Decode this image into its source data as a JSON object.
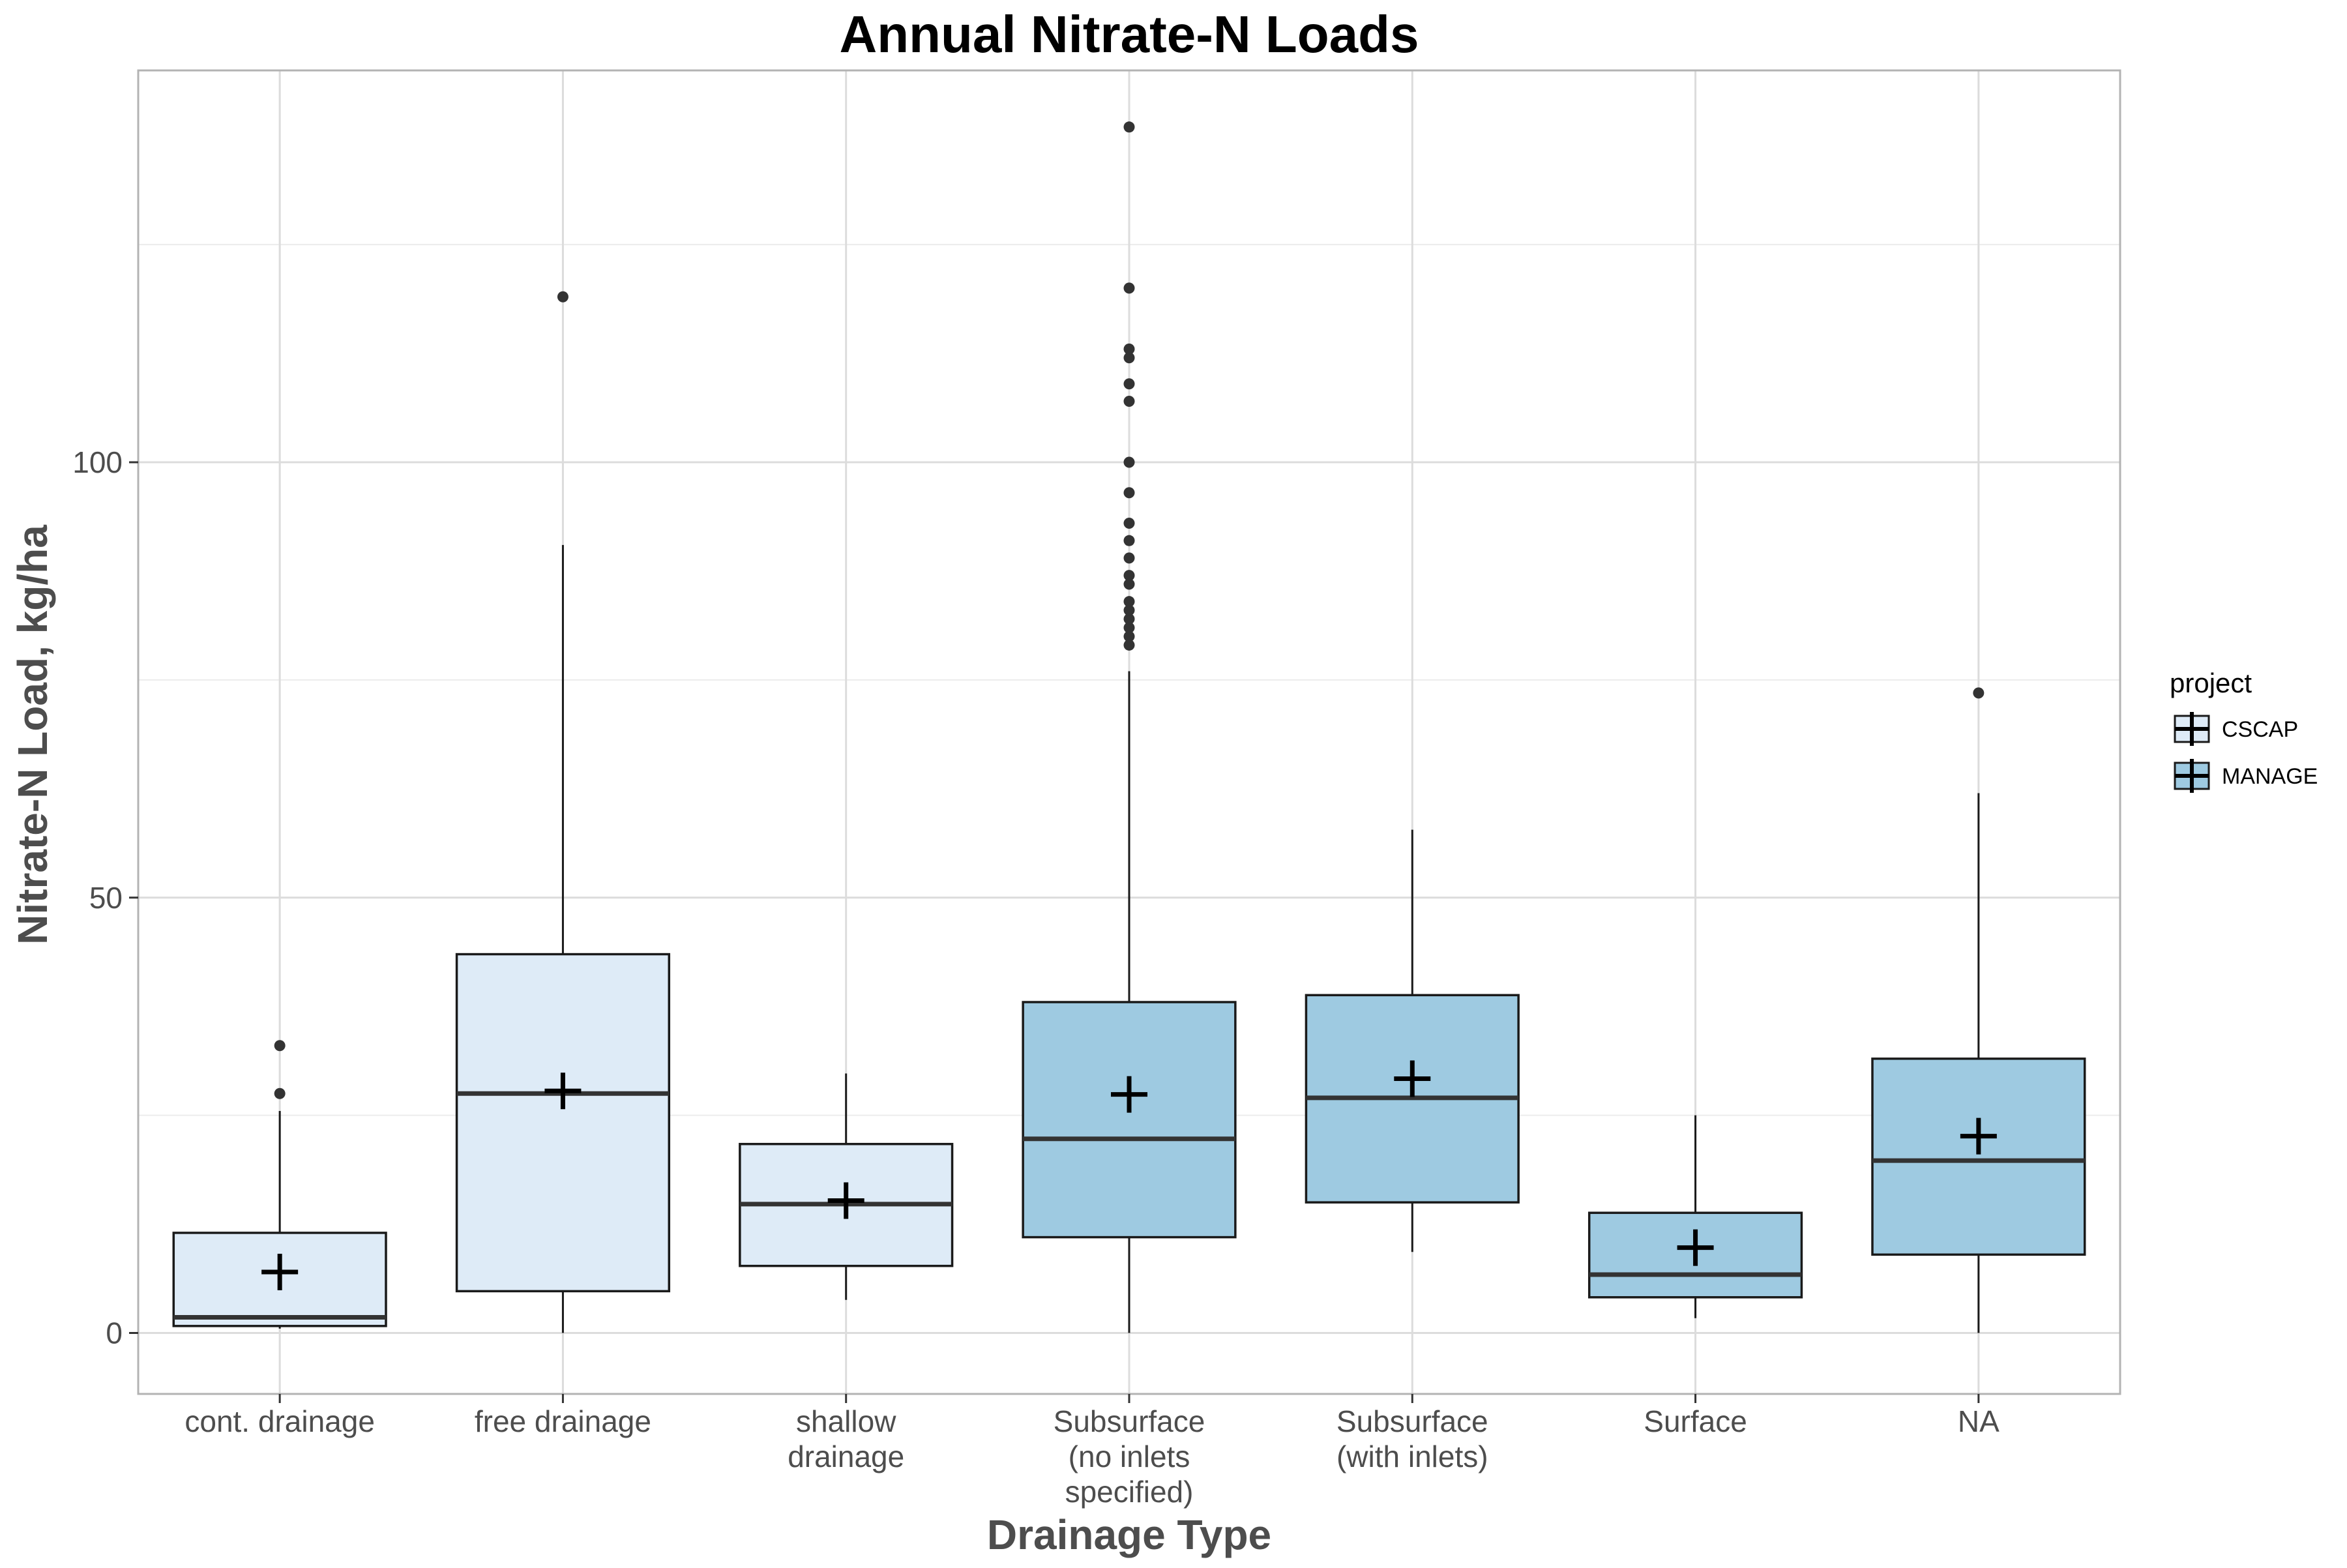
{
  "chart_data": {
    "type": "boxplot",
    "title": "Annual Nitrate-N Loads",
    "xlabel": "Drainage Type",
    "ylabel": "Nitrate-N Load, kg/ha",
    "ylim": [
      -7,
      145
    ],
    "yticks": [
      0,
      50,
      100
    ],
    "grid": true,
    "legend": {
      "title": "project",
      "position": "right",
      "entries": [
        {
          "name": "CSCAP",
          "color": "#deebf7"
        },
        {
          "name": "MANAGE",
          "color": "#9ecae1"
        }
      ]
    },
    "categories": [
      {
        "label": [
          "cont. drainage"
        ],
        "project": "CSCAP",
        "min": 0.5,
        "q1": 0.8,
        "median": 1.8,
        "q3": 11.5,
        "max": 25.5,
        "mean": 7.0,
        "outliers": [
          27.5,
          33
        ]
      },
      {
        "label": [
          "free drainage"
        ],
        "project": "CSCAP",
        "min": 0,
        "q1": 4.8,
        "median": 27.5,
        "q3": 43.5,
        "max": 90.5,
        "mean": 27.8,
        "outliers": [
          119
        ]
      },
      {
        "label": [
          "shallow",
          "drainage"
        ],
        "project": "CSCAP",
        "min": 3.8,
        "q1": 7.7,
        "median": 14.8,
        "q3": 21.7,
        "max": 29.8,
        "mean": 15.2,
        "outliers": []
      },
      {
        "label": [
          "Subsurface",
          "(no inlets",
          "specified)"
        ],
        "project": "MANAGE",
        "min": 0,
        "q1": 11.0,
        "median": 22.3,
        "q3": 38.0,
        "max": 76,
        "mean": 27.4,
        "outliers": [
          79,
          80,
          81,
          82,
          83,
          84,
          86,
          87,
          89,
          91,
          93,
          96.5,
          100,
          107,
          109,
          112,
          113,
          120,
          138.5
        ]
      },
      {
        "label": [
          "Subsurface",
          "(with inlets)"
        ],
        "project": "MANAGE",
        "min": 9.3,
        "q1": 15.0,
        "median": 27.0,
        "q3": 38.8,
        "max": 57.8,
        "mean": 29.2,
        "outliers": []
      },
      {
        "label": [
          "Surface"
        ],
        "project": "MANAGE",
        "min": 1.7,
        "q1": 4.1,
        "median": 6.7,
        "q3": 13.8,
        "max": 25.0,
        "mean": 9.8,
        "outliers": []
      },
      {
        "label": [
          "NA"
        ],
        "project": "MANAGE",
        "min": 0,
        "q1": 9.0,
        "median": 19.8,
        "q3": 31.5,
        "max": 62,
        "mean": 22.6,
        "outliers": [
          73.5
        ]
      }
    ]
  }
}
